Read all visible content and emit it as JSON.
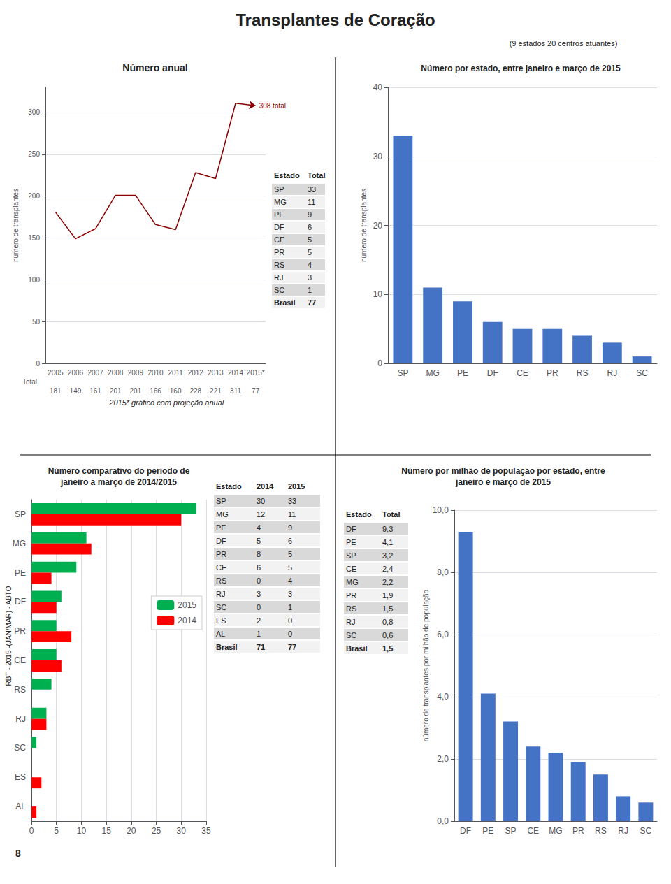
{
  "title": "Transplantes de Coração",
  "subtitle": "(9 estados 20 centros atuantes)",
  "annotations": [
    "RBT - 2015 -(JAN/MAR) - ABTO",
    "8"
  ],
  "chart_data": [
    {
      "type": "line",
      "title": "Número anual",
      "categories": [
        "2005",
        "2006",
        "2007",
        "2008",
        "2009",
        "2010",
        "2011",
        "2012",
        "2013",
        "2014",
        "2015*"
      ],
      "series": [
        {
          "color": "#8B0000",
          "values": [
            181,
            149,
            161,
            201,
            201,
            166,
            160,
            228,
            221,
            311,
            308
          ]
        }
      ],
      "annotation": "308 total",
      "note": "2015* gráfico com projeção anual",
      "ylabel": "número de transplantes",
      "ylim": [
        0,
        330
      ],
      "yticks": [
        0,
        50,
        100,
        150,
        200,
        250,
        300
      ],
      "grid": true,
      "table": {
        "rows": [
          [
            "Total",
            181,
            149,
            161,
            201,
            201,
            166,
            160,
            228,
            221,
            311,
            77
          ]
        ]
      }
    },
    {
      "type": "bar",
      "title": "Número por estado, entre janeiro e março de 2015",
      "categories": [
        "SP",
        "MG",
        "PE",
        "DF",
        "CE",
        "PR",
        "RS",
        "RJ",
        "SC"
      ],
      "values": [
        33,
        11,
        9,
        6,
        5,
        5,
        4,
        3,
        1
      ],
      "color": "#4472C4",
      "ylabel": "número de transplantes",
      "ylim": [
        0,
        40
      ],
      "yticks": [
        0,
        10,
        20,
        30,
        40
      ],
      "grid": true
    },
    {
      "type": "table",
      "columns": [
        "Estado",
        "Total"
      ],
      "rows": [
        [
          "SP",
          33
        ],
        [
          "MG",
          11
        ],
        [
          "PE",
          9
        ],
        [
          "DF",
          6
        ],
        [
          "CE",
          5
        ],
        [
          "PR",
          5
        ],
        [
          "RS",
          4
        ],
        [
          "RJ",
          3
        ],
        [
          "SC",
          1
        ],
        [
          "Brasil",
          77
        ]
      ]
    },
    {
      "type": "bar",
      "orientation": "horizontal",
      "title": "Número comparativo do período de\njaneiro a março de 2014/2015",
      "categories": [
        "SP",
        "MG",
        "PE",
        "DF",
        "PR",
        "CE",
        "RS",
        "RJ",
        "SC",
        "ES",
        "AL"
      ],
      "series": [
        {
          "name": "2015",
          "color": "#00B050",
          "values": [
            33,
            11,
            9,
            6,
            5,
            5,
            4,
            3,
            1,
            0,
            0
          ]
        },
        {
          "name": "2014",
          "color": "#FF0000",
          "values": [
            30,
            12,
            4,
            5,
            8,
            6,
            0,
            3,
            0,
            2,
            1
          ]
        }
      ],
      "xlim": [
        0,
        35
      ],
      "xticks": [
        0,
        5,
        10,
        15,
        20,
        25,
        30,
        35
      ],
      "grid": true,
      "legend": "upper right"
    },
    {
      "type": "table",
      "columns": [
        "Estado",
        "2014",
        "2015"
      ],
      "rows": [
        [
          "SP",
          30,
          33
        ],
        [
          "MG",
          12,
          11
        ],
        [
          "PE",
          4,
          9
        ],
        [
          "DF",
          5,
          6
        ],
        [
          "PR",
          8,
          5
        ],
        [
          "CE",
          6,
          5
        ],
        [
          "RS",
          0,
          4
        ],
        [
          "RJ",
          3,
          3
        ],
        [
          "SC",
          0,
          1
        ],
        [
          "ES",
          2,
          0
        ],
        [
          "AL",
          1,
          0
        ],
        [
          "Brasil",
          71,
          77
        ]
      ]
    },
    {
      "type": "bar",
      "title": "Número por milhão de população por estado, entre\njaneiro e março de 2015",
      "categories": [
        "DF",
        "PE",
        "SP",
        "CE",
        "MG",
        "PR",
        "RS",
        "RJ",
        "SC"
      ],
      "values": [
        9.3,
        4.1,
        3.2,
        2.4,
        2.2,
        1.9,
        1.5,
        0.8,
        0.6
      ],
      "color": "#4472C4",
      "ylabel": "número de transplantes por milhão de população",
      "ylim": [
        0,
        10
      ],
      "yticks": [
        {
          "value": 0,
          "label": "0,0"
        },
        {
          "value": 2,
          "label": "2,0"
        },
        {
          "value": 4,
          "label": "4,0"
        },
        {
          "value": 6,
          "label": "6,0"
        },
        {
          "value": 8,
          "label": "8,0"
        },
        {
          "value": 10,
          "label": "10,0"
        }
      ],
      "grid": true
    },
    {
      "type": "table",
      "columns": [
        "Estado",
        "Total"
      ],
      "rows": [
        [
          "DF",
          "9,3"
        ],
        [
          "PE",
          "4,1"
        ],
        [
          "SP",
          "3,2"
        ],
        [
          "CE",
          "2,4"
        ],
        [
          "MG",
          "2,2"
        ],
        [
          "PR",
          "1,9"
        ],
        [
          "RS",
          "1,5"
        ],
        [
          "RJ",
          "0,8"
        ],
        [
          "SC",
          "0,6"
        ],
        [
          "Brasil",
          "1,5"
        ]
      ]
    }
  ]
}
